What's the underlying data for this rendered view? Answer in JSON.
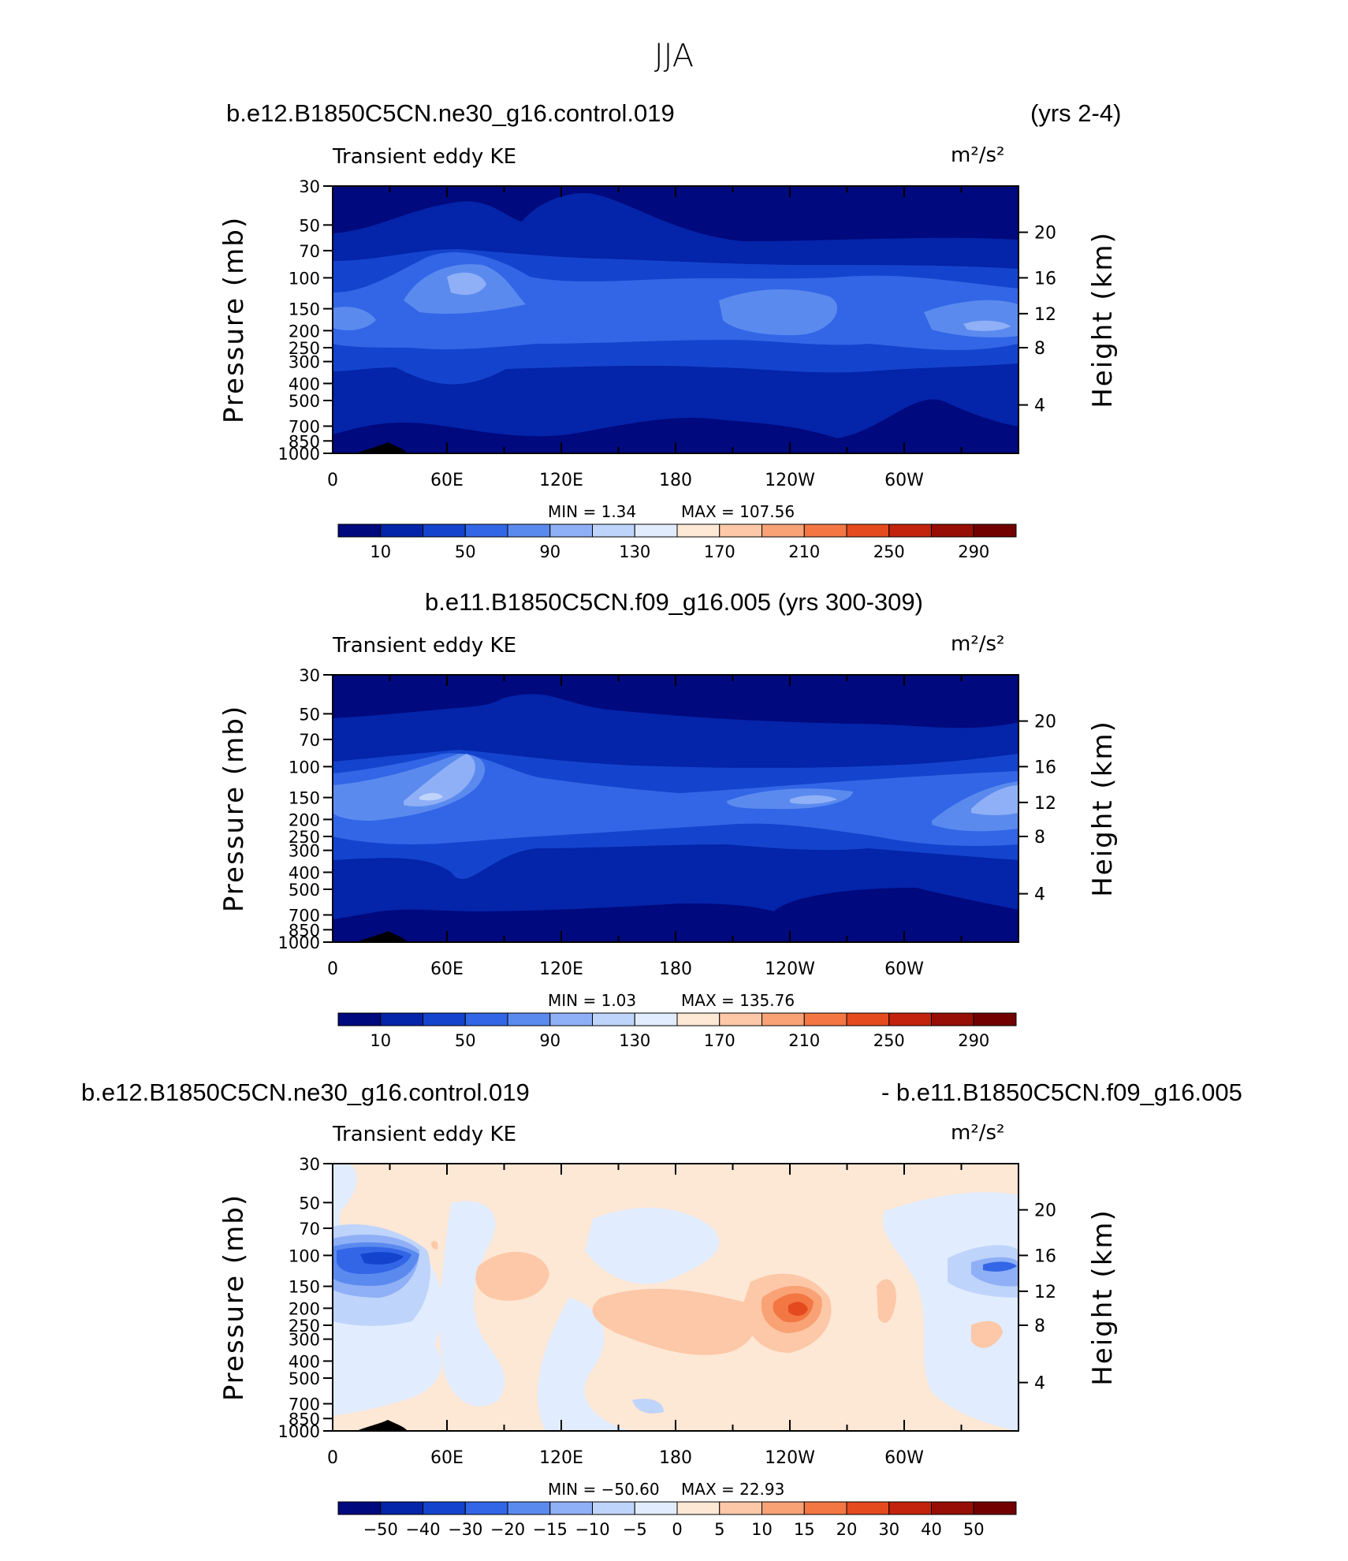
{
  "figure": {
    "suptitle": "JJA"
  },
  "chart_data": [
    {
      "type": "heatmap",
      "left_title": "b.e12.B1850C5CN.ne30_g16.control.019",
      "right_title": "(yrs 2-4)",
      "plot_label": "Transient eddy KE",
      "units": "m²/s²",
      "ylabel": "Pressure (mb)",
      "ylabel_right": "Height (km)",
      "yticks": [
        "30",
        "50",
        "70",
        "100",
        "150",
        "200",
        "250",
        "300",
        "400",
        "500",
        "700",
        "850",
        "1000"
      ],
      "yticks_right": [
        "20",
        "16",
        "12",
        "8",
        "4"
      ],
      "xticks": [
        "0",
        "60E",
        "120E",
        "180",
        "120W",
        "60W"
      ],
      "min_text": "MIN =    1.34",
      "max_text": "MAX =  107.56",
      "colorbar_labels": [
        "10",
        "50",
        "90",
        "130",
        "170",
        "210",
        "250",
        "290"
      ],
      "colorbar_colors": [
        "#00097d",
        "#0424a9",
        "#1444cd",
        "#3266e6",
        "#5b8aef",
        "#8fb0f6",
        "#bfd4fb",
        "#e1ecfe",
        "#fde7d5",
        "#fcc8a7",
        "#f9a276",
        "#f37743",
        "#e44a1e",
        "#c3230c",
        "#960e05",
        "#720000"
      ]
    },
    {
      "type": "heatmap",
      "left_title": "b.e11.B1850C5CN.f09_g16.005 (yrs 300-309)",
      "right_title": "",
      "plot_label": "Transient eddy KE",
      "units": "m²/s²",
      "ylabel": "Pressure (mb)",
      "ylabel_right": "Height (km)",
      "yticks": [
        "30",
        "50",
        "70",
        "100",
        "150",
        "200",
        "250",
        "300",
        "400",
        "500",
        "700",
        "850",
        "1000"
      ],
      "yticks_right": [
        "20",
        "16",
        "12",
        "8",
        "4"
      ],
      "xticks": [
        "0",
        "60E",
        "120E",
        "180",
        "120W",
        "60W"
      ],
      "min_text": "MIN =    1.03",
      "max_text": "MAX =  135.76",
      "colorbar_labels": [
        "10",
        "50",
        "90",
        "130",
        "170",
        "210",
        "250",
        "290"
      ],
      "colorbar_colors": [
        "#00097d",
        "#0424a9",
        "#1444cd",
        "#3266e6",
        "#5b8aef",
        "#8fb0f6",
        "#bfd4fb",
        "#e1ecfe",
        "#fde7d5",
        "#fcc8a7",
        "#f9a276",
        "#f37743",
        "#e44a1e",
        "#c3230c",
        "#960e05",
        "#720000"
      ]
    },
    {
      "type": "heatmap",
      "left_title": "b.e12.B1850C5CN.ne30_g16.control.019",
      "right_title": "- b.e11.B1850C5CN.f09_g16.005",
      "plot_label": "Transient eddy KE",
      "units": "m²/s²",
      "ylabel": "Pressure (mb)",
      "ylabel_right": "Height (km)",
      "yticks": [
        "30",
        "50",
        "70",
        "100",
        "150",
        "200",
        "250",
        "300",
        "400",
        "500",
        "700",
        "850",
        "1000"
      ],
      "yticks_right": [
        "20",
        "16",
        "12",
        "8",
        "4"
      ],
      "xticks": [
        "0",
        "60E",
        "120E",
        "180",
        "120W",
        "60W"
      ],
      "min_text": "MIN = −50.60",
      "max_text": "MAX =    22.93",
      "colorbar_labels": [
        "−50",
        "−40",
        "−30",
        "−20",
        "−15",
        "−10",
        "−5",
        "0",
        "5",
        "10",
        "15",
        "20",
        "30",
        "40",
        "50"
      ],
      "colorbar_colors": [
        "#00097d",
        "#0424a9",
        "#1444cd",
        "#3266e6",
        "#5b8aef",
        "#8fb0f6",
        "#bfd4fb",
        "#e1ecfe",
        "#fde7d5",
        "#fcc8a7",
        "#f9a276",
        "#f37743",
        "#e44a1e",
        "#c3230c",
        "#960e05",
        "#720000"
      ]
    }
  ]
}
